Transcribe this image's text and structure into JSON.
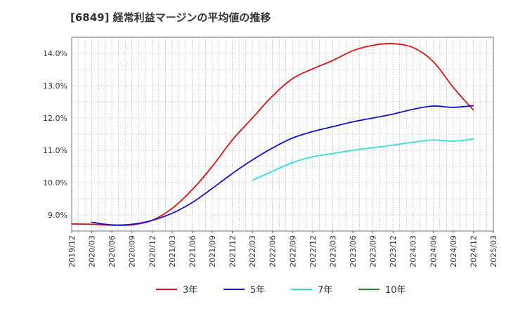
{
  "chart_data": {
    "type": "line",
    "title": "[6849]  経常利益マージンの平均値の推移",
    "xlabel": "",
    "ylabel": "",
    "ylim": [
      8.5,
      14.5
    ],
    "y_ticks": [
      9.0,
      10.0,
      11.0,
      12.0,
      13.0,
      14.0
    ],
    "y_tick_labels": [
      "9.0%",
      "10.0%",
      "11.0%",
      "12.0%",
      "13.0%",
      "14.0%"
    ],
    "x_ticks": [
      "2019/12",
      "2020/03",
      "2020/06",
      "2020/09",
      "2020/12",
      "2021/03",
      "2021/06",
      "2021/09",
      "2021/12",
      "2022/03",
      "2022/06",
      "2022/09",
      "2022/12",
      "2023/03",
      "2023/06",
      "2023/09",
      "2023/12",
      "2024/03",
      "2024/06",
      "2024/09",
      "2024/12",
      "2025/03"
    ],
    "grid": true,
    "legend_position": "bottom",
    "series": [
      {
        "name": "3年",
        "color": "#dd1111",
        "points": [
          [
            "2019/12",
            8.72
          ],
          [
            "2020/03",
            8.71
          ],
          [
            "2020/06",
            8.68
          ],
          [
            "2020/09",
            8.69
          ],
          [
            "2020/12",
            8.83
          ],
          [
            "2021/03",
            9.2
          ],
          [
            "2021/06",
            9.78
          ],
          [
            "2021/09",
            10.5
          ],
          [
            "2021/12",
            11.32
          ],
          [
            "2022/03",
            12.0
          ],
          [
            "2022/06",
            12.68
          ],
          [
            "2022/09",
            13.22
          ],
          [
            "2022/12",
            13.52
          ],
          [
            "2023/03",
            13.78
          ],
          [
            "2023/06",
            14.08
          ],
          [
            "2023/09",
            14.25
          ],
          [
            "2023/12",
            14.3
          ],
          [
            "2024/03",
            14.18
          ],
          [
            "2024/06",
            13.75
          ],
          [
            "2024/09",
            12.95
          ],
          [
            "2024/12",
            12.25
          ]
        ]
      },
      {
        "name": "5年",
        "color": "#1111cc",
        "points": [
          [
            "2020/03",
            8.77
          ],
          [
            "2020/06",
            8.69
          ],
          [
            "2020/09",
            8.71
          ],
          [
            "2020/12",
            8.83
          ],
          [
            "2021/03",
            9.05
          ],
          [
            "2021/06",
            9.38
          ],
          [
            "2021/09",
            9.82
          ],
          [
            "2021/12",
            10.28
          ],
          [
            "2022/03",
            10.7
          ],
          [
            "2022/06",
            11.07
          ],
          [
            "2022/09",
            11.38
          ],
          [
            "2022/12",
            11.58
          ],
          [
            "2023/03",
            11.73
          ],
          [
            "2023/06",
            11.88
          ],
          [
            "2023/09",
            12.0
          ],
          [
            "2023/12",
            12.12
          ],
          [
            "2024/03",
            12.27
          ],
          [
            "2024/06",
            12.37
          ],
          [
            "2024/09",
            12.33
          ],
          [
            "2024/12",
            12.38
          ]
        ]
      },
      {
        "name": "7年",
        "color": "#33dddd",
        "points": [
          [
            "2022/03",
            10.07
          ],
          [
            "2022/06",
            10.35
          ],
          [
            "2022/09",
            10.62
          ],
          [
            "2022/12",
            10.8
          ],
          [
            "2023/03",
            10.9
          ],
          [
            "2023/06",
            11.0
          ],
          [
            "2023/09",
            11.08
          ],
          [
            "2023/12",
            11.16
          ],
          [
            "2024/03",
            11.25
          ],
          [
            "2024/06",
            11.32
          ],
          [
            "2024/09",
            11.28
          ],
          [
            "2024/12",
            11.35
          ]
        ]
      },
      {
        "name": "10年",
        "color": "#228822",
        "points": []
      }
    ]
  }
}
